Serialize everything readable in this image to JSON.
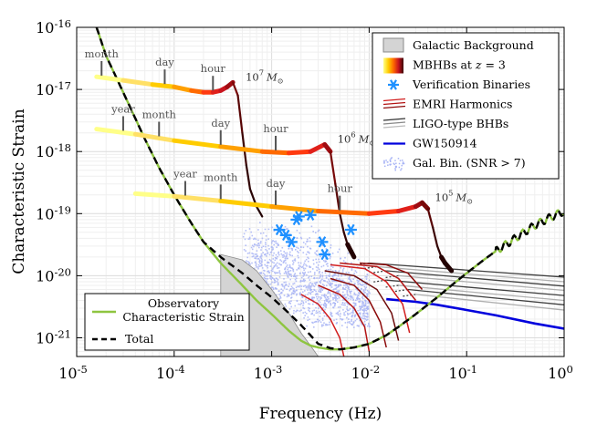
{
  "chart_data": {
    "type": "line",
    "xlabel": "Frequency (Hz)",
    "ylabel": "Characteristic Strain",
    "xscale": "log",
    "yscale": "log",
    "xlim": [
      1e-05,
      1
    ],
    "ylim": [
      5e-22,
      1e-16
    ],
    "grid": true,
    "x_ticks": [
      {
        "value": 1e-05,
        "base": "10",
        "exp": "-5"
      },
      {
        "value": 0.0001,
        "base": "10",
        "exp": "-4"
      },
      {
        "value": 0.001,
        "base": "10",
        "exp": "-3"
      },
      {
        "value": 0.01,
        "base": "10",
        "exp": "-2"
      },
      {
        "value": 0.1,
        "base": "10",
        "exp": "-1"
      },
      {
        "value": 1,
        "base": "10",
        "exp": "0"
      }
    ],
    "y_ticks": [
      {
        "value": 1e-21,
        "base": "10",
        "exp": "-21"
      },
      {
        "value": 1e-20,
        "base": "10",
        "exp": "-20"
      },
      {
        "value": 1e-19,
        "base": "10",
        "exp": "-19"
      },
      {
        "value": 1e-18,
        "base": "10",
        "exp": "-18"
      },
      {
        "value": 1e-17,
        "base": "10",
        "exp": "-17"
      },
      {
        "value": 1e-16,
        "base": "10",
        "exp": "-16"
      }
    ],
    "legend_main": {
      "position": "top-right",
      "entries": [
        {
          "label": "Galactic Background",
          "style": "patch-gray"
        },
        {
          "label_main": "MBHBs at ",
          "label_math": "z",
          "label_rest": " = 3",
          "style": "gradient"
        },
        {
          "label": "Verification Binaries",
          "style": "star"
        },
        {
          "label": "EMRI Harmonics",
          "style": "lines-red"
        },
        {
          "label": "LIGO-type BHBs",
          "style": "lines-gray"
        },
        {
          "label": "GW150914",
          "style": "line-blue"
        },
        {
          "label": "Gal. Bin. (SNR > 7)",
          "style": "dots"
        }
      ]
    },
    "legend_secondary": {
      "position": "bottom-left",
      "entries": [
        {
          "label_lines": [
            "Observatory",
            "Characteristic Strain"
          ],
          "style": "line-green"
        },
        {
          "label": "Total",
          "style": "line-dashed"
        }
      ]
    },
    "series": [
      {
        "name": "Observatory Characteristic Strain",
        "color": "#8ec540",
        "x": [
          1.6e-05,
          2e-05,
          3e-05,
          5e-05,
          7e-05,
          0.0001,
          0.00015,
          0.0002,
          0.0003,
          0.0005,
          0.0007,
          0.001,
          0.0015,
          0.002,
          0.0025,
          0.003,
          0.004,
          0.005,
          0.007,
          0.01,
          0.015,
          0.02,
          0.03,
          0.05,
          0.07,
          0.1,
          0.15,
          0.2,
          0.3,
          0.5,
          0.7,
          1
        ],
        "y": [
          1e-16,
          3.5e-17,
          9e-18,
          1.6e-18,
          5.5e-19,
          2e-19,
          7e-20,
          3.5e-20,
          1.6e-20,
          7e-21,
          4e-21,
          2.4e-21,
          1.3e-21,
          9e-22,
          7.5e-22,
          7e-22,
          6.5e-22,
          6.5e-22,
          7e-22,
          8e-22,
          1.1e-21,
          1.5e-21,
          2.4e-21,
          4.5e-21,
          7e-21,
          1.1e-20,
          1.8e-20,
          2.5e-20,
          3.8e-20,
          6.5e-20,
          8.5e-20,
          1.1e-19
        ]
      },
      {
        "name": "Total",
        "color": "#000000",
        "dashed": true,
        "x": [
          1.6e-05,
          2e-05,
          3e-05,
          5e-05,
          7e-05,
          0.0001,
          0.00015,
          0.0002,
          0.0003,
          0.0005,
          0.0007,
          0.001,
          0.0015,
          0.002,
          0.0025,
          0.003,
          0.004,
          0.005,
          0.007,
          0.01,
          0.015,
          0.02,
          0.03,
          0.05,
          0.07,
          0.1,
          0.15,
          0.2,
          0.3,
          0.5,
          0.7,
          1
        ],
        "y": [
          1e-16,
          3.5e-17,
          9e-18,
          1.6e-18,
          5.5e-19,
          2e-19,
          7e-20,
          3.5e-20,
          2e-20,
          1.1e-20,
          7e-21,
          4.5e-21,
          2.5e-21,
          1.6e-21,
          1.1e-21,
          8e-22,
          6.8e-22,
          6.5e-22,
          7e-22,
          8e-22,
          1.1e-21,
          1.5e-21,
          2.4e-21,
          4.5e-21,
          7e-21,
          1.1e-20,
          1.8e-20,
          2.5e-20,
          3.8e-20,
          6.5e-20,
          8.5e-20,
          1.1e-19
        ]
      },
      {
        "name": "Galactic Background",
        "color": "#cccccc",
        "x": [
          0.0003,
          0.0005,
          0.0007,
          0.001,
          0.0015,
          0.002,
          0.0025,
          0.003
        ],
        "y": [
          2.2e-20,
          1.8e-20,
          1.2e-20,
          6e-21,
          2.5e-21,
          1.2e-21,
          7.5e-22,
          5e-22
        ]
      },
      {
        "name": "GW150914",
        "color": "#0000dd",
        "x": [
          0.015,
          0.03,
          0.05,
          0.1,
          0.2,
          0.5,
          1
        ],
        "y": [
          4.2e-21,
          3.8e-21,
          3.4e-21,
          2.8e-21,
          2.3e-21,
          1.7e-21,
          1.4e-21
        ]
      }
    ],
    "mbhb_tracks": [
      {
        "mass_base": "10",
        "mass_exp": "7",
        "mass_unit": "M",
        "mass_sub": "⊙",
        "x": [
          1.6e-05,
          3e-05,
          6e-05,
          0.0001,
          0.00015,
          0.0002,
          0.00025,
          0.0003,
          0.00035,
          0.0004,
          0.00045,
          0.0005,
          0.00055,
          0.0006,
          0.0007,
          0.0008
        ],
        "y": [
          1.6e-17,
          1.4e-17,
          1.2e-17,
          1.1e-17,
          9.6e-18,
          9e-18,
          9e-18,
          9.6e-18,
          1.1e-17,
          1.3e-17,
          8e-18,
          2e-18,
          6e-19,
          2.5e-19,
          1.3e-19,
          9e-20
        ],
        "times": [
          {
            "label": "month",
            "x": 1.8e-05
          },
          {
            "label": "day",
            "x": 8e-05
          },
          {
            "label": "hour",
            "x": 0.00025
          }
        ]
      },
      {
        "mass_base": "10",
        "mass_exp": "6",
        "mass_unit": "M",
        "mass_sub": "⊙",
        "x": [
          1.6e-05,
          4e-05,
          0.0001,
          0.0003,
          0.0008,
          0.0015,
          0.0025,
          0.0035,
          0.004,
          0.0045,
          0.005,
          0.0055,
          0.006,
          0.0065,
          0.007
        ],
        "y": [
          2.3e-18,
          1.9e-18,
          1.5e-18,
          1.2e-18,
          1e-18,
          9.5e-19,
          1e-18,
          1.3e-18,
          1e-18,
          3e-19,
          1e-19,
          5e-20,
          3.2e-20,
          2.5e-20,
          2e-20
        ],
        "times": [
          {
            "label": "year",
            "x": 3e-05
          },
          {
            "label": "month",
            "x": 7e-05
          },
          {
            "label": "day",
            "x": 0.0003
          },
          {
            "label": "hour",
            "x": 0.0011
          }
        ]
      },
      {
        "mass_base": "10",
        "mass_exp": "5",
        "mass_unit": "M",
        "mass_sub": "⊙",
        "x": [
          4e-05,
          0.0001,
          0.0003,
          0.001,
          0.003,
          0.01,
          0.02,
          0.03,
          0.035,
          0.04,
          0.045,
          0.05,
          0.055,
          0.06,
          0.07
        ],
        "y": [
          2.1e-19,
          1.9e-19,
          1.6e-19,
          1.3e-19,
          1.1e-19,
          1e-19,
          1.1e-19,
          1.3e-19,
          1.5e-19,
          1.2e-19,
          6e-20,
          3e-20,
          2e-20,
          1.6e-20,
          1.2e-20
        ],
        "times": [
          {
            "label": "year",
            "x": 0.00013
          },
          {
            "label": "month",
            "x": 0.0003
          },
          {
            "label": "day",
            "x": 0.0011
          },
          {
            "label": "hour",
            "x": 0.005
          }
        ]
      }
    ],
    "verification_binaries": {
      "color": "#1e90ff",
      "x": [
        0.0012,
        0.0014,
        0.0016,
        0.0018,
        0.0019,
        0.0025,
        0.0033,
        0.0035,
        0.0065
      ],
      "y": [
        5.5e-20,
        4.5e-20,
        3.5e-20,
        8e-20,
        9e-20,
        9.5e-20,
        3.5e-20,
        2.2e-20,
        5.5e-20
      ]
    },
    "emri_harmonics": {
      "colors": [
        "#d21e1e",
        "#b41414",
        "#8c0a0a",
        "#6e0a0a"
      ],
      "tracks": [
        {
          "x": [
            0.002,
            0.003,
            0.004,
            0.005,
            0.0055
          ],
          "y": [
            5e-21,
            3.5e-21,
            2e-21,
            1e-21,
            5e-22
          ]
        },
        {
          "x": [
            0.003,
            0.005,
            0.007,
            0.009,
            0.01
          ],
          "y": [
            7e-21,
            5e-21,
            3e-21,
            1.5e-21,
            6e-22
          ]
        },
        {
          "x": [
            0.004,
            0.007,
            0.01,
            0.013,
            0.015
          ],
          "y": [
            9e-21,
            7e-21,
            4e-21,
            1.8e-21,
            7e-22
          ]
        },
        {
          "x": [
            0.0035,
            0.007,
            0.012,
            0.017,
            0.02
          ],
          "y": [
            1.2e-20,
            1e-20,
            6e-21,
            2.5e-21,
            9e-22
          ]
        },
        {
          "x": [
            0.004,
            0.009,
            0.015,
            0.022,
            0.026
          ],
          "y": [
            1.5e-20,
            1.3e-20,
            8e-21,
            3.5e-21,
            1.2e-21
          ]
        },
        {
          "x": [
            0.005,
            0.012,
            0.02,
            0.03
          ],
          "y": [
            1.6e-20,
            1.4e-20,
            9e-21,
            4e-21
          ]
        },
        {
          "x": [
            0.008,
            0.015,
            0.025,
            0.035
          ],
          "y": [
            1.6e-20,
            1.5e-20,
            1.1e-20,
            6e-21
          ]
        }
      ]
    },
    "ligo_tracks": {
      "y_start": [
        1.6e-20,
        1.4e-20,
        1.2e-20,
        1e-20,
        8.5e-21,
        7e-21,
        6e-21,
        5e-21
      ],
      "y_end": [
        9.5e-21,
        8e-21,
        6.8e-21,
        5.8e-21,
        4.8e-21,
        4e-21,
        3.4e-21,
        2.8e-21
      ],
      "x_start": [
        0.01,
        0.012,
        0.015,
        0.02,
        0.015,
        0.02,
        0.025,
        0.03
      ],
      "x_end": 1
    },
    "galactic_binaries": {
      "color": "#a8b4f5",
      "x_range": [
        0.0005,
        0.01
      ],
      "y_range": [
        1.5e-21,
        2e-19
      ]
    }
  }
}
